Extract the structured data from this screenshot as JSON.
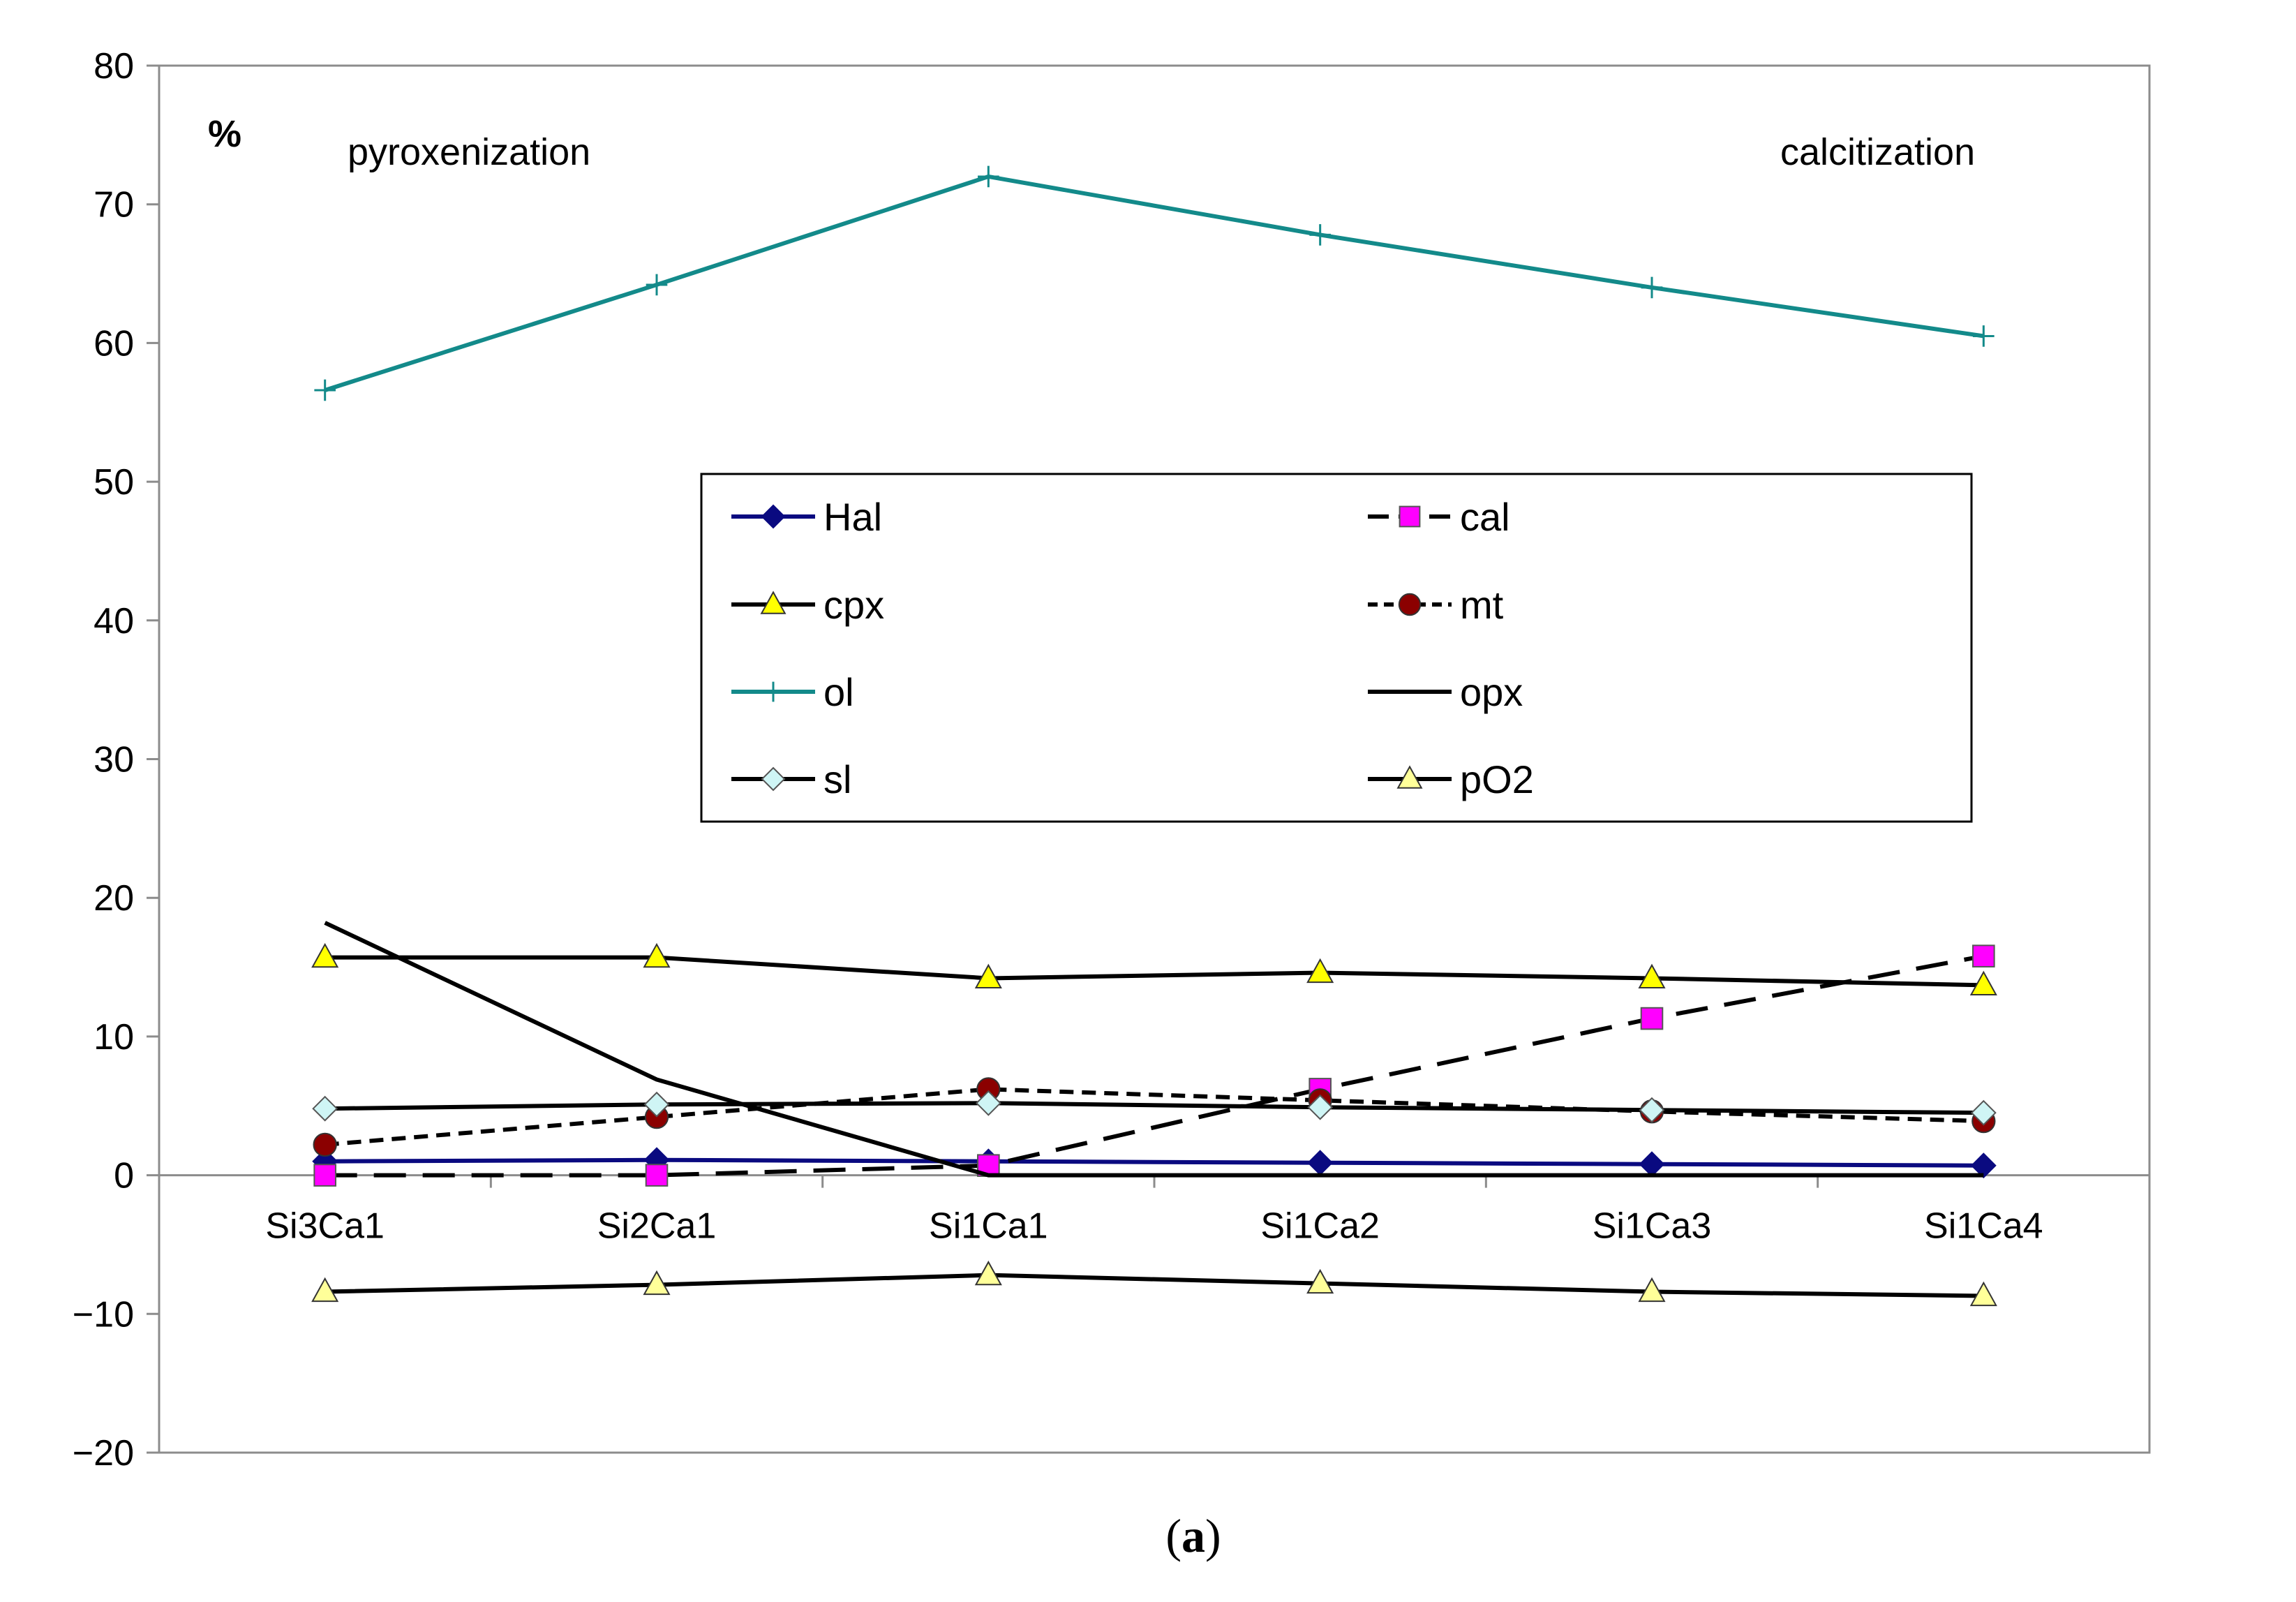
{
  "chart_data": {
    "type": "line",
    "unit_label": "%",
    "annotations": [
      "pyroxenization",
      "calcitization"
    ],
    "caption_label": "a",
    "categories": [
      "Si3Ca1",
      "Si2Ca1",
      "Si1Ca1",
      "Si1Ca2",
      "Si1Ca3",
      "Si1Ca4"
    ],
    "ylim": [
      -20,
      80
    ],
    "yticks": [
      80,
      70,
      60,
      50,
      40,
      30,
      20,
      10,
      0,
      -10,
      -20
    ],
    "ytick_labels": [
      "80",
      "70",
      "60",
      "50",
      "40",
      "30",
      "20",
      "10",
      "0",
      "−10",
      "−20"
    ],
    "grid": false,
    "legend_position": "center",
    "series": [
      {
        "name": "Hal",
        "values": [
          1.0,
          1.1,
          1.0,
          0.9,
          0.8,
          0.7
        ],
        "color": "#0a0a80",
        "dash": "solid",
        "marker": "diamond",
        "marker_color": "#0a0a80"
      },
      {
        "name": "cal",
        "values": [
          0.0,
          0.0,
          0.7,
          6.2,
          11.3,
          15.8
        ],
        "color": "#000000",
        "dash": "long-dash",
        "marker": "square",
        "marker_color": "#ff00ff"
      },
      {
        "name": "cpx",
        "values": [
          15.7,
          15.7,
          14.2,
          14.6,
          14.2,
          13.7
        ],
        "color": "#000000",
        "dash": "solid",
        "marker": "triangle",
        "marker_color": "#ffff00"
      },
      {
        "name": "mt",
        "values": [
          2.2,
          4.2,
          6.2,
          5.4,
          4.6,
          3.9
        ],
        "color": "#000000",
        "dash": "short-dash",
        "marker": "circle",
        "marker_color": "#8b0000"
      },
      {
        "name": "ol",
        "values": [
          56.6,
          64.2,
          72.0,
          67.8,
          64.0,
          60.5
        ],
        "color": "#138a8a",
        "dash": "solid",
        "marker": "plus",
        "marker_color": "#138a8a"
      },
      {
        "name": "opx",
        "values": [
          18.2,
          6.9,
          0.0,
          0.0,
          0.0,
          0.0
        ],
        "color": "#000000",
        "dash": "solid",
        "marker": "none",
        "marker_color": "#000000"
      },
      {
        "name": "sl",
        "values": [
          4.8,
          5.1,
          5.2,
          4.9,
          4.7,
          4.5
        ],
        "color": "#000000",
        "dash": "solid",
        "marker": "diamond",
        "marker_color": "#cff5f5"
      },
      {
        "name": "pO2",
        "values": [
          -8.4,
          -7.9,
          -7.2,
          -7.8,
          -8.4,
          -8.7
        ],
        "color": "#000000",
        "dash": "solid",
        "marker": "triangle",
        "marker_color": "#ffff99"
      }
    ]
  }
}
